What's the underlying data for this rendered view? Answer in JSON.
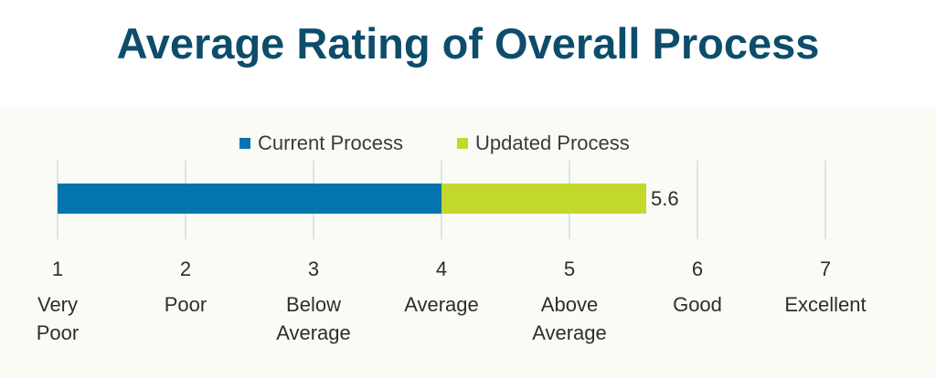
{
  "colors": {
    "background_panel": "#fbfbf5",
    "title": "#0d4d6b",
    "current": "#0374ad",
    "updated": "#c2d82c",
    "gridline": "#c9d9ee"
  },
  "chart_data": {
    "type": "bar",
    "orientation": "horizontal",
    "stacked": true,
    "title": "Average Rating of Overall Process",
    "xlim": [
      1,
      7
    ],
    "x_ticks": [
      1,
      2,
      3,
      4,
      5,
      6,
      7
    ],
    "x_tick_labels": [
      "Very\nPoor",
      "Poor",
      "Below\nAverage",
      "Average",
      "Above\nAverage",
      "Good",
      "Excellent"
    ],
    "grid": true,
    "legend_position": "top",
    "series": [
      {
        "name": "Current Process",
        "start": 1,
        "end": 4,
        "color": "#0374ad"
      },
      {
        "name": "Updated Process",
        "start": 4,
        "end": 5.6,
        "color": "#c2d82c"
      }
    ],
    "data_labels": [
      {
        "text": "5.6",
        "value": 5.6
      }
    ]
  }
}
